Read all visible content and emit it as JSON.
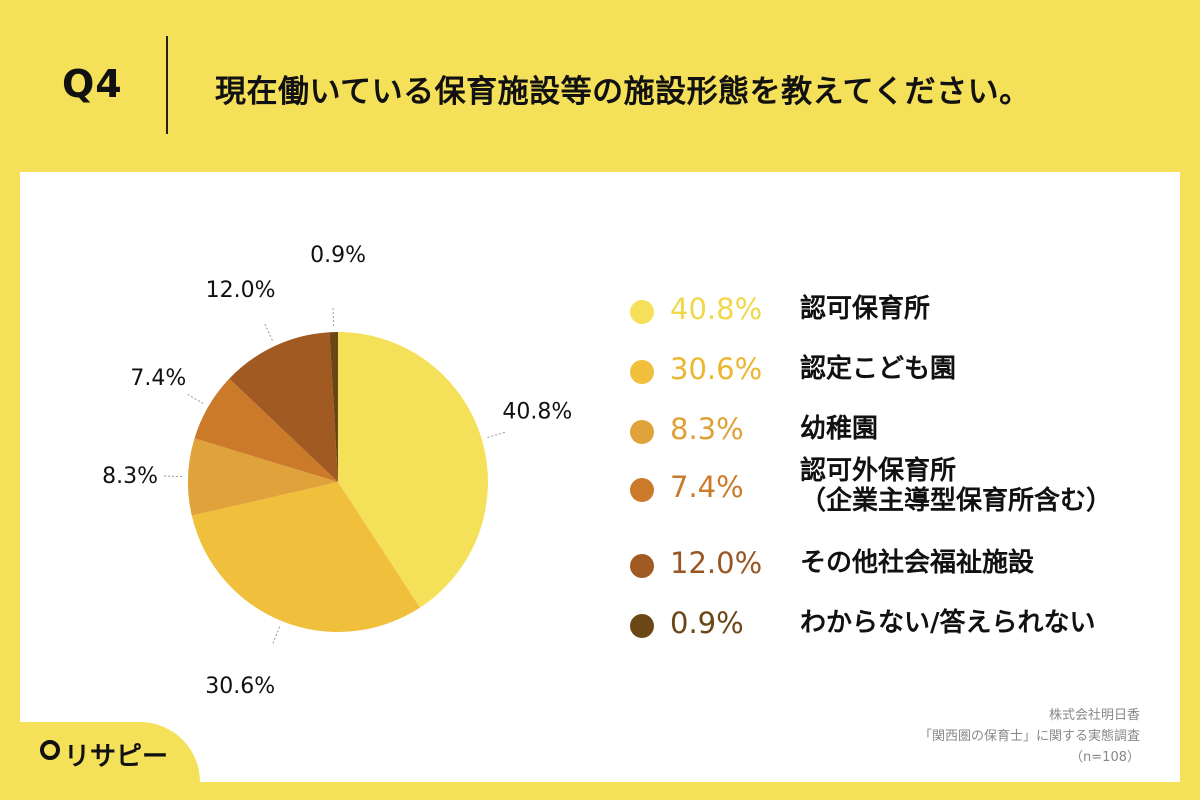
{
  "header": {
    "q_label": "Q4",
    "question": "現在働いている保育施設等の施設形態を教えてください。"
  },
  "chart_data": {
    "type": "pie",
    "categories": [
      "認可保育所",
      "認定こども園",
      "幼稚園",
      "認可外保育所（企業主導型保育所含む）",
      "その他社会福祉施設",
      "わからない/答えられない"
    ],
    "values": [
      40.8,
      30.6,
      8.3,
      7.4,
      12.0,
      0.9
    ],
    "value_labels": [
      "40.8%",
      "30.6%",
      "8.3%",
      "7.4%",
      "12.0%",
      "0.9%"
    ],
    "colors": [
      "#f5e05a",
      "#f0bf3c",
      "#e0a23a",
      "#cb7a2a",
      "#a05a22",
      "#6b4716"
    ],
    "legend_placement": "right"
  },
  "legend": {
    "items": [
      {
        "pct": "40.8%",
        "label": "認可保育所",
        "label2": "",
        "color": "#f5e05a",
        "text_color": "#f0d84a"
      },
      {
        "pct": "30.6%",
        "label": "認定こども園",
        "label2": "",
        "color": "#f0bf3c",
        "text_color": "#ecb730"
      },
      {
        "pct": "8.3%",
        "label": "幼稚園",
        "label2": "",
        "color": "#e0a23a",
        "text_color": "#dfa035"
      },
      {
        "pct": "7.4%",
        "label": "認可外保育所",
        "label2": "（企業主導型保育所含む）",
        "color": "#cb7a2a",
        "text_color": "#c97a2a"
      },
      {
        "pct": "12.0%",
        "label": "その他社会福祉施設",
        "label2": "",
        "color": "#a05a22",
        "text_color": "#9a5622"
      },
      {
        "pct": "0.9%",
        "label": "わからない/答えられない",
        "label2": "",
        "color": "#6b4716",
        "text_color": "#6b4716"
      }
    ]
  },
  "source": {
    "line1": "株式会社明日香",
    "line2": "「関西圏の保育士」に関する実態調査",
    "line3": "（n=108）"
  },
  "logo": {
    "text": "リサピー"
  }
}
